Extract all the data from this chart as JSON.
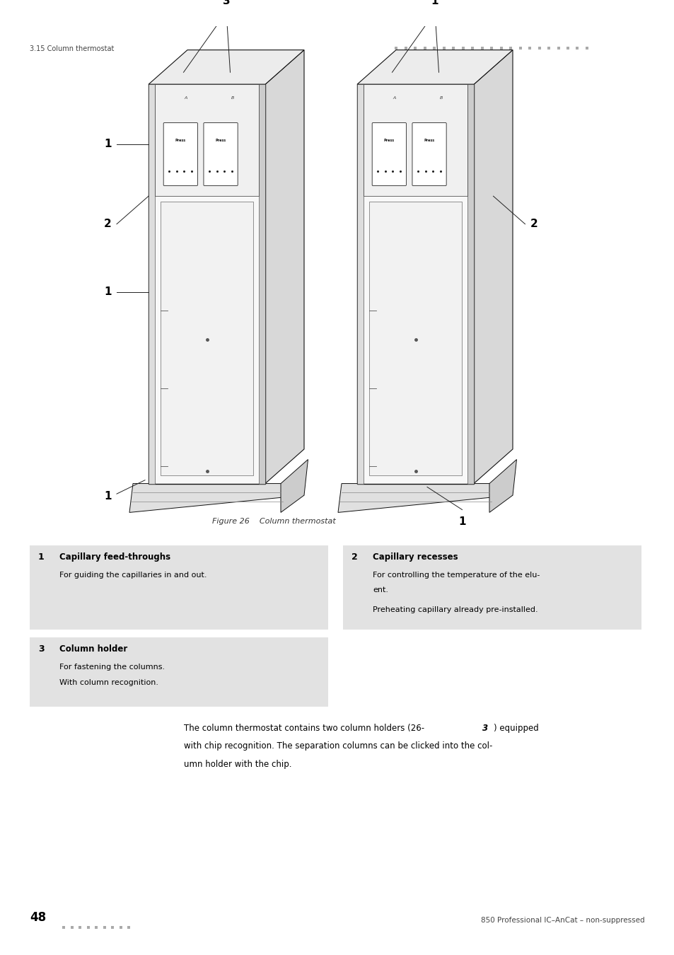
{
  "page_width": 9.54,
  "page_height": 13.5,
  "bg_color": "#ffffff",
  "header_left": "3.15 Column thermostat",
  "figure_caption": "Figure 26    Column thermostat",
  "section_number": "48",
  "footer_right": "850 Professional IC–AnCat – non-suppressed",
  "box1_num": "1",
  "box1_title": "Capillary feed-throughs",
  "box1_text1": "For guiding the capillaries in and out.",
  "box2_num": "2",
  "box2_title": "Capillary recesses",
  "box2_text1": "For controlling the temperature of the elu-",
  "box2_text1b": "ent.",
  "box2_text2": "Preheating capillary already pre-installed.",
  "box3_num": "3",
  "box3_title": "Column holder",
  "box3_text1": "For fastening the columns.",
  "box3_text2": "With column recognition.",
  "box_bg_color": "#e2e2e2",
  "text_color": "#000000"
}
